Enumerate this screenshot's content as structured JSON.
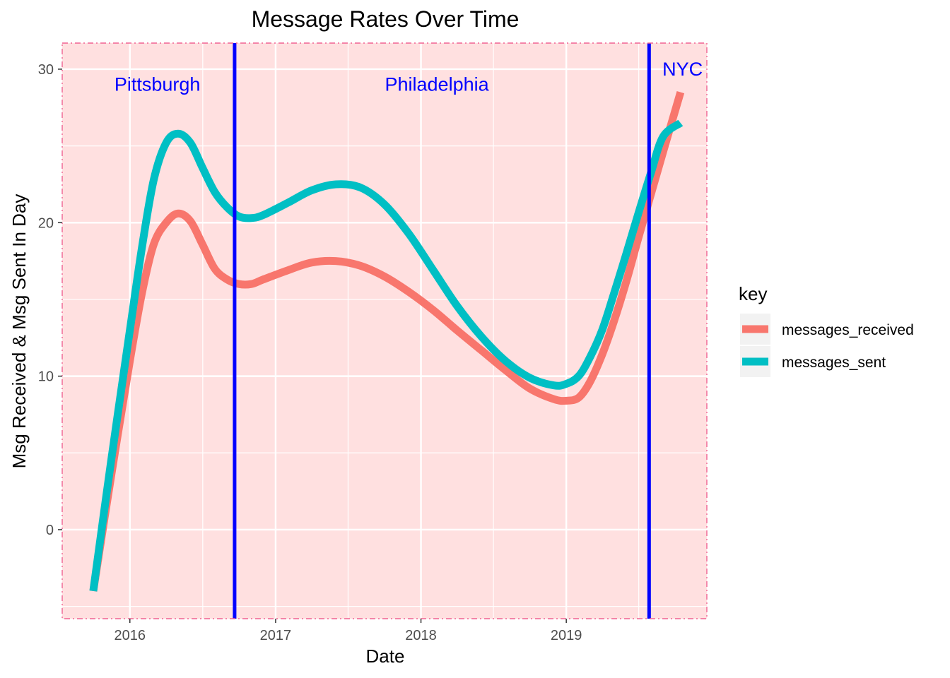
{
  "chart_data": {
    "type": "line",
    "title": "Message Rates Over Time",
    "xlabel": "Date",
    "ylabel": "Msg Received & Msg Sent In Day",
    "x_ticks": [
      "2016",
      "2017",
      "2018",
      "2019"
    ],
    "y_ticks": [
      "0",
      "10",
      "20",
      "30"
    ],
    "xlim": [
      "2015-07-15",
      "2019-12-20"
    ],
    "ylim": [
      -5.8,
      31.7
    ],
    "grid": true,
    "legend_position": "right",
    "legend_title": "key",
    "x": [
      "2015-10-01",
      "2015-11-15",
      "2016-01-01",
      "2016-02-01",
      "2016-03-01",
      "2016-04-01",
      "2016-05-01",
      "2016-06-01",
      "2016-07-01",
      "2016-08-01",
      "2016-09-01",
      "2016-10-01",
      "2016-11-01",
      "2016-12-01",
      "2017-02-01",
      "2017-04-01",
      "2017-06-01",
      "2017-08-01",
      "2017-10-01",
      "2017-12-01",
      "2018-02-01",
      "2018-04-01",
      "2018-06-01",
      "2018-08-01",
      "2018-10-01",
      "2018-12-01",
      "2019-01-01",
      "2019-02-01",
      "2019-03-01",
      "2019-04-01",
      "2019-05-01",
      "2019-06-01",
      "2019-07-01",
      "2019-08-01",
      "2019-09-01",
      "2019-10-15"
    ],
    "series": [
      {
        "name": "messages_received",
        "color": "#F8766D",
        "values": [
          -4.0,
          3.5,
          11.0,
          15.5,
          18.6,
          20.0,
          20.6,
          20.1,
          18.6,
          17.0,
          16.3,
          16.0,
          16.0,
          16.3,
          16.9,
          17.4,
          17.5,
          17.2,
          16.5,
          15.5,
          14.3,
          13.0,
          11.7,
          10.4,
          9.2,
          8.5,
          8.4,
          8.6,
          9.6,
          11.4,
          13.6,
          16.2,
          19.0,
          21.8,
          24.6,
          28.5
        ]
      },
      {
        "name": "messages_sent",
        "color": "#00BFC4",
        "values": [
          -4.0,
          4.5,
          13.0,
          18.5,
          22.8,
          25.2,
          25.8,
          25.2,
          23.6,
          22.0,
          21.0,
          20.4,
          20.3,
          20.5,
          21.3,
          22.1,
          22.5,
          22.3,
          21.2,
          19.3,
          16.9,
          14.6,
          12.6,
          11.0,
          9.9,
          9.4,
          9.5,
          10.0,
          11.2,
          13.0,
          15.4,
          18.0,
          20.6,
          23.2,
          25.6,
          26.5
        ]
      }
    ],
    "reference_lines": [
      {
        "x": "2016-09-20",
        "color": "#0000FF"
      },
      {
        "x": "2019-07-28",
        "color": "#0000FF"
      }
    ],
    "annotations": [
      {
        "text": "Pittsburgh",
        "x": "2016-03-10",
        "y": 29.0,
        "color": "#0000FF"
      },
      {
        "text": "Philadelphia",
        "x": "2018-02-10",
        "y": 29.0,
        "color": "#0000FF"
      },
      {
        "text": "NYC",
        "x": "2019-10-20",
        "y": 30.0,
        "color": "#0000FF"
      }
    ],
    "panel_fill": "#FFE0E0",
    "panel_border": "#F06292"
  }
}
